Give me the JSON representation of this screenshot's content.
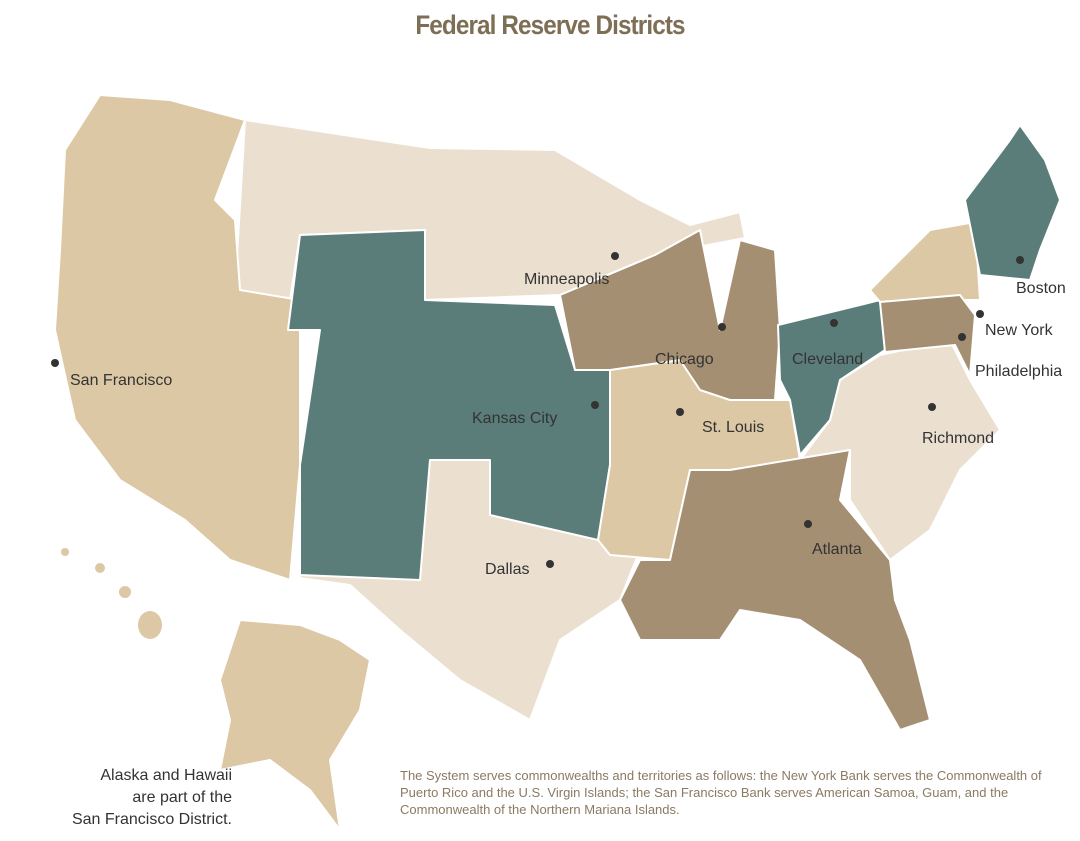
{
  "title": "Federal Reserve Districts",
  "colors": {
    "tan": "#dcc8a5",
    "light": "#ebdfd0",
    "teal": "#5a7d7a",
    "brown": "#a48f72",
    "title": "#7d6e55"
  },
  "districts": [
    {
      "name": "San Francisco",
      "color": "tan"
    },
    {
      "name": "Minneapolis",
      "color": "light"
    },
    {
      "name": "Kansas City",
      "color": "teal"
    },
    {
      "name": "Dallas",
      "color": "light"
    },
    {
      "name": "Chicago",
      "color": "brown"
    },
    {
      "name": "St. Louis",
      "color": "tan"
    },
    {
      "name": "Cleveland",
      "color": "teal"
    },
    {
      "name": "Atlanta",
      "color": "brown"
    },
    {
      "name": "Richmond",
      "color": "light"
    },
    {
      "name": "Philadelphia",
      "color": "brown"
    },
    {
      "name": "New York",
      "color": "tan"
    },
    {
      "name": "Boston",
      "color": "teal"
    }
  ],
  "cities": {
    "san_francisco": "San Francisco",
    "minneapolis": "Minneapolis",
    "kansas_city": "Kansas City",
    "dallas": "Dallas",
    "chicago": "Chicago",
    "st_louis": "St. Louis",
    "cleveland": "Cleveland",
    "atlanta": "Atlanta",
    "richmond": "Richmond",
    "philadelphia": "Philadelphia",
    "new_york": "New York",
    "boston": "Boston"
  },
  "notes": {
    "alaska_hawaii": [
      "Alaska and Hawaii",
      "are part of the",
      "San Francisco District."
    ],
    "territories": "The System serves commonwealths and territories as follows: the New York Bank serves the Commonwealth of Puerto Rico and the U.S. Virgin  Islands; the San Francisco Bank serves American Samoa, Guam, and the Commonwealth of the Northern Mariana Islands."
  }
}
